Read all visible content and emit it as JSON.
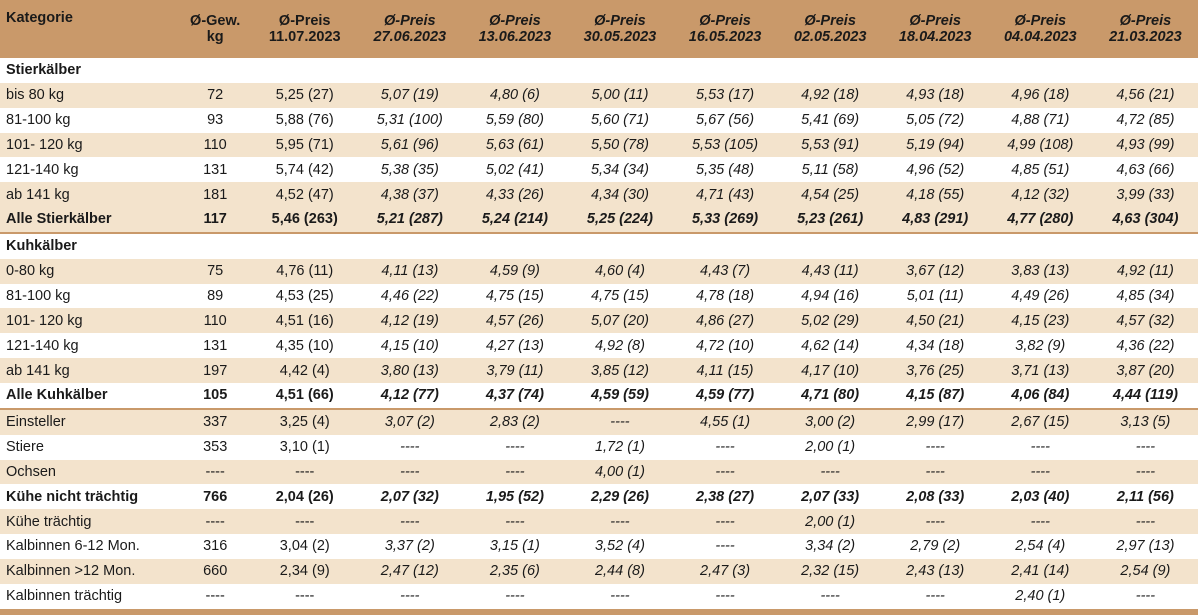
{
  "header": {
    "kategorie": "Kategorie",
    "gew": [
      "Ø-Gew.",
      "kg"
    ],
    "price_label": "Ø-Preis",
    "dates": [
      "11.07.2023",
      "27.06.2023",
      "13.06.2023",
      "30.05.2023",
      "16.05.2023",
      "02.05.2023",
      "18.04.2023",
      "04.04.2023",
      "21.03.2023"
    ]
  },
  "sections": {
    "stier": "Stierkälber",
    "kuh": "Kuhkälber"
  },
  "rows": [
    {
      "k": "bis 80 kg",
      "g": "72",
      "v": [
        "5,25 (27)",
        "5,07 (19)",
        "4,80 (6)",
        "5,00 (11)",
        "5,53 (17)",
        "4,92 (18)",
        "4,93 (18)",
        "4,96 (18)",
        "4,56 (21)"
      ]
    },
    {
      "k": "81-100 kg",
      "g": "93",
      "v": [
        "5,88 (76)",
        "5,31 (100)",
        "5,59 (80)",
        "5,60 (71)",
        "5,67 (56)",
        "5,41 (69)",
        "5,05 (72)",
        "4,88 (71)",
        "4,72 (85)"
      ]
    },
    {
      "k": "101- 120 kg",
      "g": "110",
      "v": [
        "5,95 (71)",
        "5,61 (96)",
        "5,63 (61)",
        "5,50 (78)",
        "5,53 (105)",
        "5,53 (91)",
        "5,19 (94)",
        "4,99 (108)",
        "4,93 (99)"
      ]
    },
    {
      "k": "121-140 kg",
      "g": "131",
      "v": [
        "5,74 (42)",
        "5,38 (35)",
        "5,02 (41)",
        "5,34 (34)",
        "5,35 (48)",
        "5,11 (58)",
        "4,96 (52)",
        "4,85 (51)",
        "4,63 (66)"
      ]
    },
    {
      "k": "ab 141 kg",
      "g": "181",
      "v": [
        "4,52 (47)",
        "4,38 (37)",
        "4,33 (26)",
        "4,34 (30)",
        "4,71 (43)",
        "4,54 (25)",
        "4,18 (55)",
        "4,12 (32)",
        "3,99 (33)"
      ]
    },
    {
      "k": "Alle Stierkälber",
      "g": "117",
      "v": [
        "5,46 (263)",
        "5,21 (287)",
        "5,24 (214)",
        "5,25 (224)",
        "5,33 (269)",
        "5,23 (261)",
        "4,83 (291)",
        "4,77 (280)",
        "4,63 (304)"
      ]
    },
    {
      "k": "0-80 kg",
      "g": "75",
      "v": [
        "4,76 (11)",
        "4,11 (13)",
        "4,59 (9)",
        "4,60 (4)",
        "4,43 (7)",
        "4,43 (11)",
        "3,67 (12)",
        "3,83 (13)",
        "4,92 (11)"
      ]
    },
    {
      "k": "81-100 kg",
      "g": "89",
      "v": [
        "4,53 (25)",
        "4,46 (22)",
        "4,75 (15)",
        "4,75 (15)",
        "4,78 (18)",
        "4,94 (16)",
        "5,01 (11)",
        "4,49 (26)",
        "4,85 (34)"
      ]
    },
    {
      "k": "101- 120 kg",
      "g": "110",
      "v": [
        "4,51 (16)",
        "4,12 (19)",
        "4,57 (26)",
        "5,07 (20)",
        "4,86 (27)",
        "5,02 (29)",
        "4,50 (21)",
        "4,15 (23)",
        "4,57 (32)"
      ]
    },
    {
      "k": "121-140 kg",
      "g": "131",
      "v": [
        "4,35 (10)",
        "4,15 (10)",
        "4,27 (13)",
        "4,92 (8)",
        "4,72 (10)",
        "4,62 (14)",
        "4,34 (18)",
        "3,82 (9)",
        "4,36 (22)"
      ]
    },
    {
      "k": "ab 141 kg",
      "g": "197",
      "v": [
        "4,42 (4)",
        "3,80 (13)",
        "3,79 (11)",
        "3,85 (12)",
        "4,11 (15)",
        "4,17 (10)",
        "3,76 (25)",
        "3,71 (13)",
        "3,87 (20)"
      ]
    },
    {
      "k": "Alle Kuhkälber",
      "g": "105",
      "v": [
        "4,51 (66)",
        "4,12 (77)",
        "4,37 (74)",
        "4,59 (59)",
        "4,59 (77)",
        "4,71 (80)",
        "4,15 (87)",
        "4,06 (84)",
        "4,44 (119)"
      ]
    },
    {
      "k": "Einsteller",
      "g": "337",
      "v": [
        "3,25 (4)",
        "3,07 (2)",
        "2,83 (2)",
        "----",
        "4,55 (1)",
        "3,00 (2)",
        "2,99 (17)",
        "2,67 (15)",
        "3,13 (5)"
      ]
    },
    {
      "k": "Stiere",
      "g": "353",
      "v": [
        "3,10 (1)",
        "----",
        "----",
        "1,72 (1)",
        "----",
        "2,00 (1)",
        "----",
        "----",
        "----"
      ]
    },
    {
      "k": "Ochsen",
      "g": "----",
      "v": [
        "----",
        "----",
        "----",
        "4,00 (1)",
        "----",
        "----",
        "----",
        "----",
        "----"
      ]
    },
    {
      "k": "Kühe nicht trächtig",
      "g": "766",
      "v": [
        "2,04 (26)",
        "2,07 (32)",
        "1,95 (52)",
        "2,29 (26)",
        "2,38 (27)",
        "2,07 (33)",
        "2,08 (33)",
        "2,03 (40)",
        "2,11 (56)"
      ]
    },
    {
      "k": "Kühe trächtig",
      "g": "----",
      "v": [
        "----",
        "----",
        "----",
        "----",
        "----",
        "2,00 (1)",
        "----",
        "----",
        "----"
      ]
    },
    {
      "k": "Kalbinnen 6-12 Mon.",
      "g": "316",
      "v": [
        "3,04 (2)",
        "3,37 (2)",
        "3,15 (1)",
        "3,52 (4)",
        "----",
        "3,34 (2)",
        "2,79 (2)",
        "2,54 (4)",
        "2,97 (13)"
      ]
    },
    {
      "k": "Kalbinnen >12 Mon.",
      "g": "660",
      "v": [
        "2,34 (9)",
        "2,47 (12)",
        "2,35 (6)",
        "2,44 (8)",
        "2,47 (3)",
        "2,32 (15)",
        "2,43 (13)",
        "2,41 (14)",
        "2,54 (9)"
      ]
    },
    {
      "k": "Kalbinnen trächtig",
      "g": "----",
      "v": [
        "----",
        "----",
        "----",
        "----",
        "----",
        "----",
        "----",
        "2,40 (1)",
        "----"
      ]
    }
  ]
}
